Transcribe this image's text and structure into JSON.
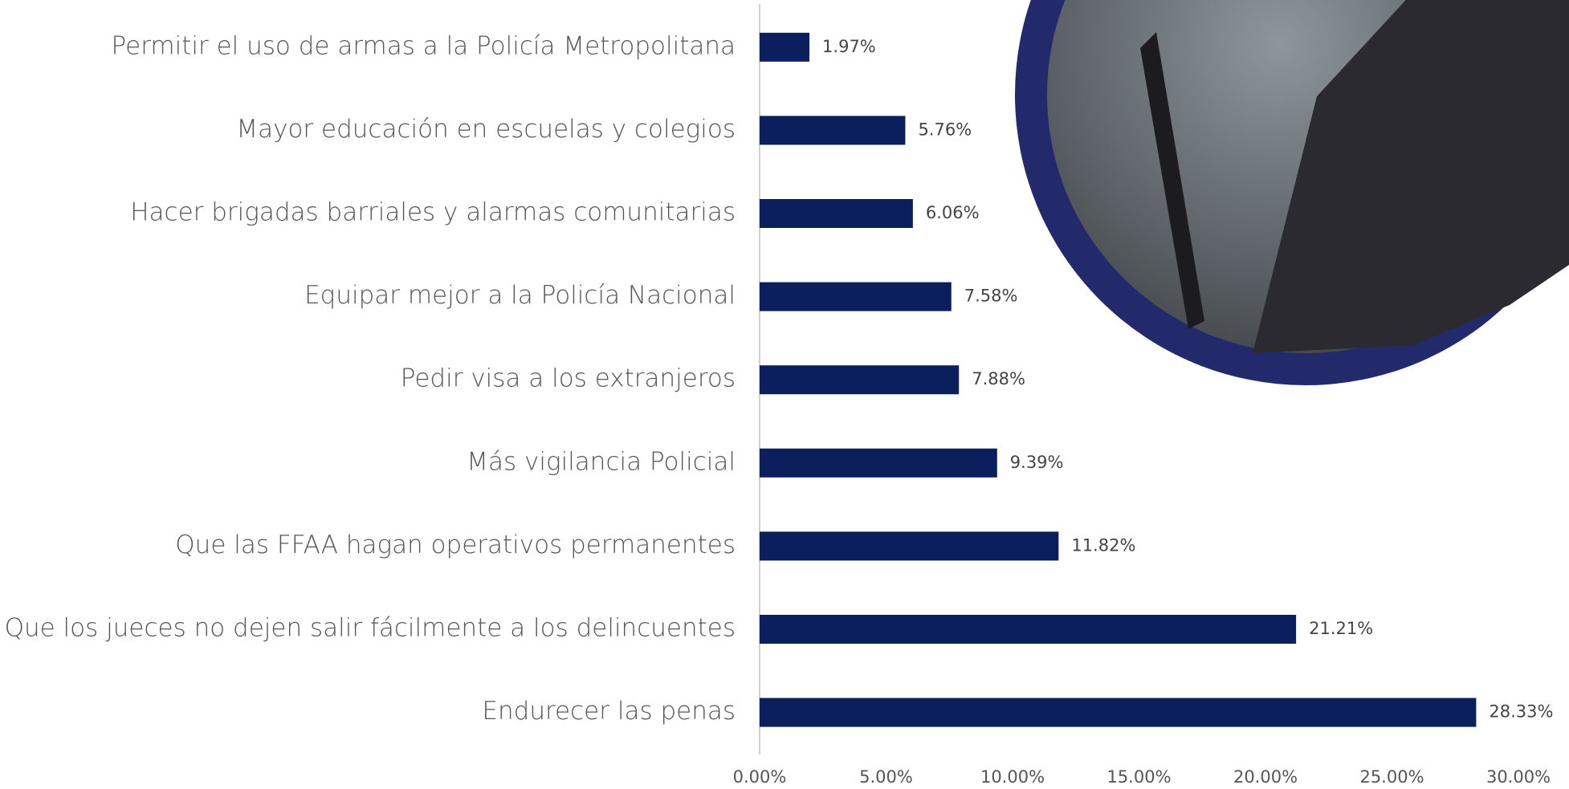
{
  "chart_data": {
    "type": "barh",
    "categories": [
      "Permitir el uso de armas a la Policía Metropolitana",
      "Mayor educación en escuelas y colegios",
      "Hacer brigadas barriales y alarmas comunitarias",
      "Equipar mejor a la Policía Nacional",
      "Pedir visa a los extranjeros",
      "Más vigilancia Policial",
      "Que las FFAA hagan operativos permanentes",
      "Que los jueces no dejen salir fácilmente a los delincuentes",
      "Endurecer las penas"
    ],
    "values": [
      1.97,
      5.76,
      6.06,
      7.58,
      7.88,
      9.39,
      11.82,
      21.21,
      28.33
    ],
    "value_labels": [
      "1.97%",
      "5.76%",
      "6.06%",
      "7.58%",
      "7.88%",
      "9.39%",
      "11.82%",
      "21.21%",
      "28.33%"
    ],
    "color": "#0b1f5c",
    "xlim": [
      0,
      30
    ],
    "xticks": [
      {
        "value": 0,
        "label": "0.00%"
      },
      {
        "value": 5,
        "label": "5.00%"
      },
      {
        "value": 10,
        "label": "10.00%"
      },
      {
        "value": 15,
        "label": "15.00%"
      },
      {
        "value": 20,
        "label": "20.00%"
      },
      {
        "value": 25,
        "label": "25.00%"
      },
      {
        "value": 30,
        "label": "30.00%"
      }
    ]
  }
}
